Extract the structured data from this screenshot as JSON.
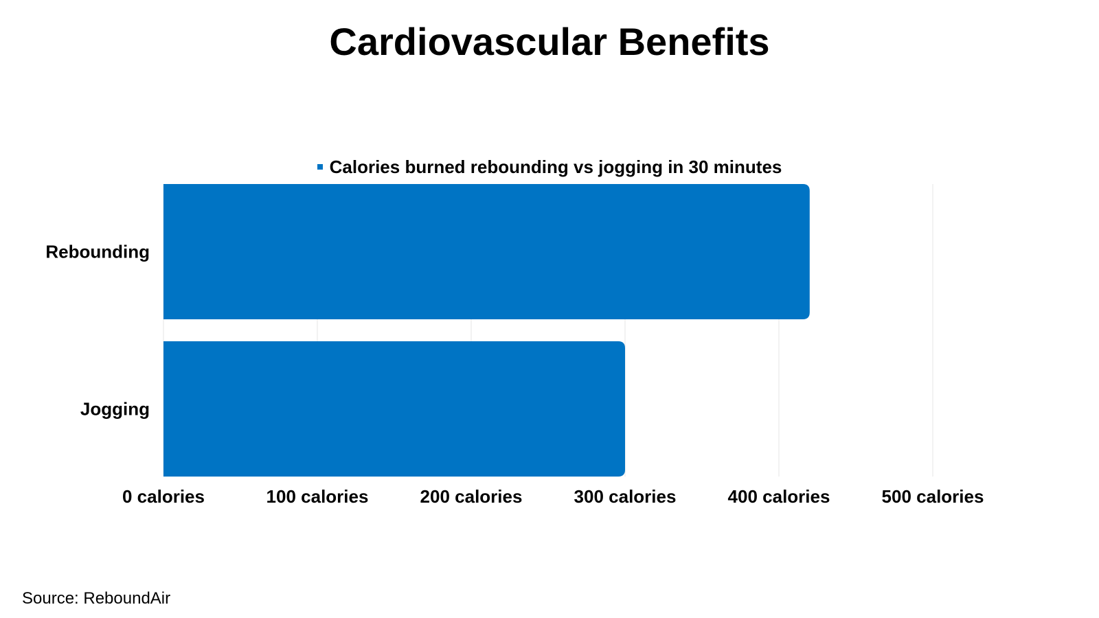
{
  "chart_data": {
    "type": "bar",
    "orientation": "horizontal",
    "title": "Cardiovascular Benefits",
    "categories": [
      "Rebounding",
      "Jogging"
    ],
    "series": [
      {
        "name": "Calories burned rebounding vs jogging in 30 minutes",
        "values": [
          420,
          300
        ],
        "color": "#0074C4"
      }
    ],
    "xlim": [
      0,
      500
    ],
    "x_ticks": [
      0,
      100,
      200,
      300,
      400,
      500
    ],
    "x_tick_labels": [
      "0 calories",
      "100 calories",
      "200 calories",
      "300 calories",
      "400 calories",
      "500 calories"
    ],
    "grid": true,
    "legend_position": "top-center",
    "xlabel": "",
    "ylabel": ""
  },
  "source_text": "Source: ReboundAir",
  "colors": {
    "bar": "#0074C4",
    "grid": "#e6e6e6"
  }
}
